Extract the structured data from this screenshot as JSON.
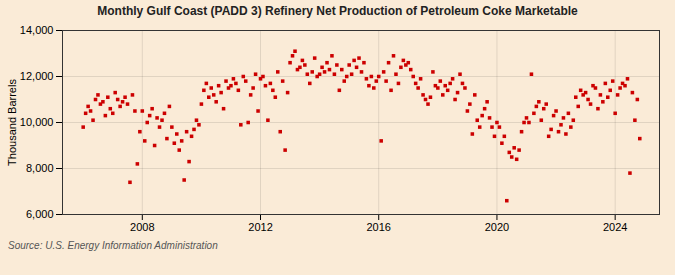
{
  "chart_data": {
    "type": "scatter",
    "title": "Monthly Gulf Coast (PADD 3) Refinery Net Production of Petroleum Coke Marketable",
    "ylabel": "Thousand Barrels",
    "source": "Source: U.S. Energy Information Administration",
    "color": "#cc0000",
    "marker": "square",
    "grid": true,
    "xlim": [
      2005.3,
      2025.5
    ],
    "xticks": [
      2008,
      2012,
      2016,
      2020,
      2024
    ],
    "ylim": [
      6000,
      14000
    ],
    "yticks": [
      {
        "value": 6000,
        "label": "6,000"
      },
      {
        "value": 8000,
        "label": "8,000"
      },
      {
        "value": 10000,
        "label": "10,000"
      },
      {
        "value": 12000,
        "label": "12,000"
      },
      {
        "value": 14000,
        "label": "14,000"
      }
    ],
    "x": [
      2006.0,
      2006.083,
      2006.167,
      2006.25,
      2006.333,
      2006.417,
      2006.5,
      2006.583,
      2006.667,
      2006.75,
      2006.833,
      2006.917,
      2007.0,
      2007.083,
      2007.167,
      2007.25,
      2007.333,
      2007.417,
      2007.5,
      2007.583,
      2007.667,
      2007.75,
      2007.833,
      2007.917,
      2008.0,
      2008.083,
      2008.167,
      2008.25,
      2008.333,
      2008.417,
      2008.5,
      2008.583,
      2008.667,
      2008.75,
      2008.833,
      2008.917,
      2009.0,
      2009.083,
      2009.167,
      2009.25,
      2009.333,
      2009.417,
      2009.5,
      2009.583,
      2009.667,
      2009.75,
      2009.833,
      2009.917,
      2010.0,
      2010.083,
      2010.167,
      2010.25,
      2010.333,
      2010.417,
      2010.5,
      2010.583,
      2010.667,
      2010.75,
      2010.833,
      2010.917,
      2011.0,
      2011.083,
      2011.167,
      2011.25,
      2011.333,
      2011.417,
      2011.5,
      2011.583,
      2011.667,
      2011.75,
      2011.833,
      2011.917,
      2012.0,
      2012.083,
      2012.167,
      2012.25,
      2012.333,
      2012.417,
      2012.5,
      2012.583,
      2012.667,
      2012.75,
      2012.833,
      2012.917,
      2013.0,
      2013.083,
      2013.167,
      2013.25,
      2013.333,
      2013.417,
      2013.5,
      2013.583,
      2013.667,
      2013.75,
      2013.833,
      2013.917,
      2014.0,
      2014.083,
      2014.167,
      2014.25,
      2014.333,
      2014.417,
      2014.5,
      2014.583,
      2014.667,
      2014.75,
      2014.833,
      2014.917,
      2015.0,
      2015.083,
      2015.167,
      2015.25,
      2015.333,
      2015.417,
      2015.5,
      2015.583,
      2015.667,
      2015.75,
      2015.833,
      2015.917,
      2016.0,
      2016.083,
      2016.167,
      2016.25,
      2016.333,
      2016.417,
      2016.5,
      2016.583,
      2016.667,
      2016.75,
      2016.833,
      2016.917,
      2017.0,
      2017.083,
      2017.167,
      2017.25,
      2017.333,
      2017.417,
      2017.5,
      2017.583,
      2017.667,
      2017.75,
      2017.833,
      2017.917,
      2018.0,
      2018.083,
      2018.167,
      2018.25,
      2018.333,
      2018.417,
      2018.5,
      2018.583,
      2018.667,
      2018.75,
      2018.833,
      2018.917,
      2019.0,
      2019.083,
      2019.167,
      2019.25,
      2019.333,
      2019.417,
      2019.5,
      2019.583,
      2019.667,
      2019.75,
      2019.833,
      2019.917,
      2020.0,
      2020.083,
      2020.167,
      2020.25,
      2020.333,
      2020.417,
      2020.5,
      2020.583,
      2020.667,
      2020.75,
      2020.833,
      2020.917,
      2021.0,
      2021.083,
      2021.167,
      2021.25,
      2021.333,
      2021.417,
      2021.5,
      2021.583,
      2021.667,
      2021.75,
      2021.833,
      2021.917,
      2022.0,
      2022.083,
      2022.167,
      2022.25,
      2022.333,
      2022.417,
      2022.5,
      2022.583,
      2022.667,
      2022.75,
      2022.833,
      2022.917,
      2023.0,
      2023.083,
      2023.167,
      2023.25,
      2023.333,
      2023.417,
      2023.5,
      2023.583,
      2023.667,
      2023.75,
      2023.833,
      2023.917,
      2024.0,
      2024.083,
      2024.167,
      2024.25,
      2024.333,
      2024.417,
      2024.5,
      2024.583,
      2024.667,
      2024.75,
      2024.833
    ],
    "values": [
      9800,
      10400,
      10700,
      10500,
      10100,
      11000,
      11200,
      10800,
      10900,
      10300,
      11100,
      10600,
      10400,
      11300,
      11000,
      10700,
      10900,
      11100,
      10800,
      7400,
      11200,
      10500,
      8200,
      9600,
      10500,
      9200,
      10000,
      10300,
      10600,
      9000,
      10200,
      9800,
      10100,
      10400,
      9300,
      10700,
      9800,
      9100,
      9500,
      8800,
      9200,
      7500,
      9600,
      8300,
      9400,
      9700,
      10100,
      9900,
      10800,
      11400,
      11700,
      11100,
      11500,
      11200,
      10900,
      11600,
      11300,
      10600,
      11800,
      11500,
      11600,
      11900,
      11700,
      11400,
      9900,
      12000,
      11800,
      10000,
      11200,
      11500,
      12100,
      10500,
      11900,
      12000,
      11600,
      10100,
      11700,
      11400,
      11100,
      12200,
      9600,
      11800,
      8800,
      11300,
      12600,
      12900,
      13100,
      12300,
      12400,
      12700,
      12500,
      12100,
      11700,
      12200,
      12800,
      12000,
      12100,
      12400,
      12200,
      12600,
      12300,
      12900,
      12100,
      12500,
      11400,
      12300,
      11800,
      12000,
      12500,
      12100,
      12700,
      12400,
      12800,
      12200,
      12600,
      11900,
      11600,
      12000,
      11500,
      11800,
      12000,
      9200,
      12200,
      11800,
      12600,
      11400,
      12900,
      12100,
      11700,
      12400,
      12700,
      12500,
      12600,
      12300,
      12000,
      11700,
      11500,
      11900,
      11200,
      11000,
      10800,
      11100,
      12200,
      11600,
      11500,
      11800,
      11200,
      11600,
      11400,
      11700,
      11900,
      11000,
      11300,
      12100,
      11700,
      11500,
      10500,
      10800,
      9500,
      11200,
      10100,
      9800,
      10300,
      10600,
      10900,
      10200,
      9800,
      9400,
      10000,
      9800,
      9100,
      9400,
      6600,
      8700,
      8500,
      8900,
      8400,
      8800,
      9600,
      10000,
      10200,
      10000,
      12100,
      10400,
      10700,
      10900,
      10100,
      10600,
      10800,
      9400,
      9700,
      10300,
      10500,
      9600,
      9900,
      10200,
      9500,
      10400,
      9800,
      10100,
      11100,
      10700,
      11400,
      11200,
      11300,
      11000,
      10800,
      11600,
      11500,
      10600,
      11200,
      10900,
      11700,
      11100,
      11400,
      11800,
      10400,
      11200,
      11500,
      11700,
      11600,
      11900,
      7800,
      11300,
      10100,
      11000,
      9300
    ]
  }
}
